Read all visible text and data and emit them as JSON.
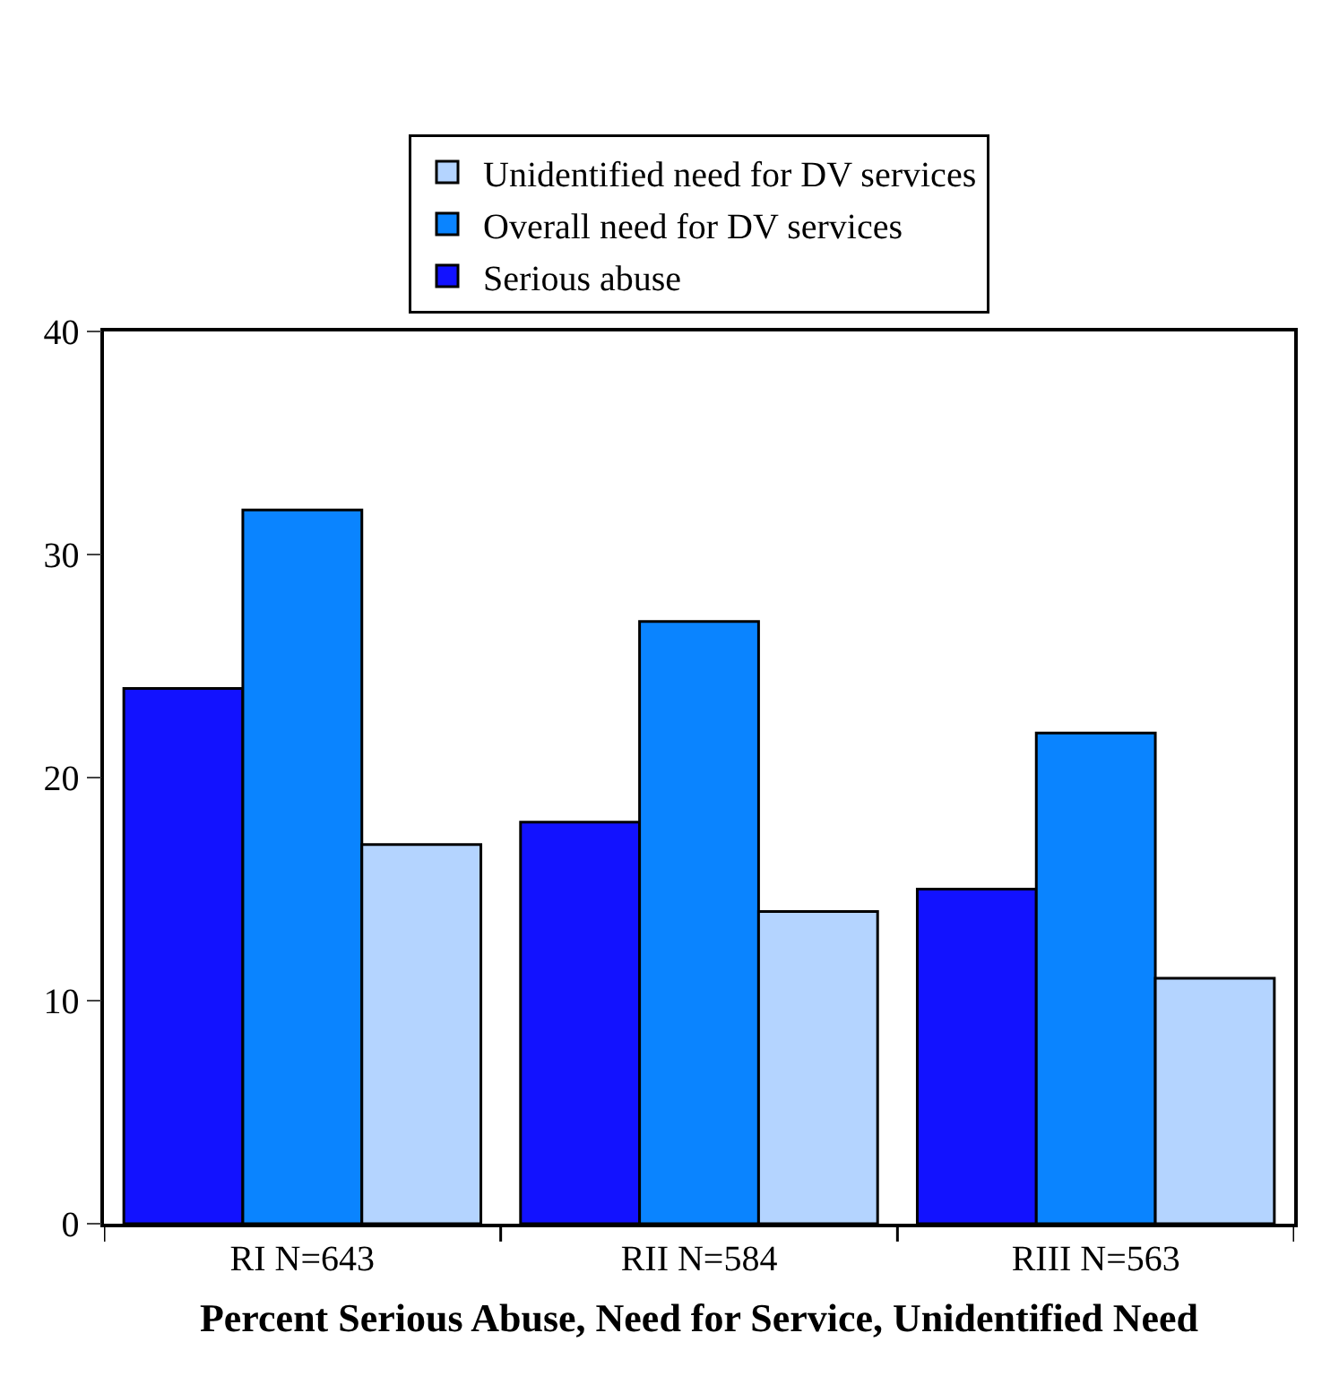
{
  "chart_data": {
    "type": "bar",
    "xlabel": "Percent Serious Abuse, Need for Service, Unidentified Need",
    "categories": [
      "RI N=643",
      "RII N=584",
      "RIII N=563"
    ],
    "series": [
      {
        "name": "Serious abuse",
        "color": "#1212ff",
        "values": [
          24,
          18,
          15
        ]
      },
      {
        "name": "Overall need for DV services",
        "color": "#0a84ff",
        "values": [
          32,
          27,
          22
        ]
      },
      {
        "name": "Unidentified need for DV services",
        "color": "#b4d4ff",
        "values": [
          17,
          14,
          11
        ]
      }
    ],
    "ylim": [
      0,
      40
    ],
    "yticks": [
      0,
      10,
      20,
      30,
      40
    ],
    "grid": false,
    "legend": "top"
  }
}
